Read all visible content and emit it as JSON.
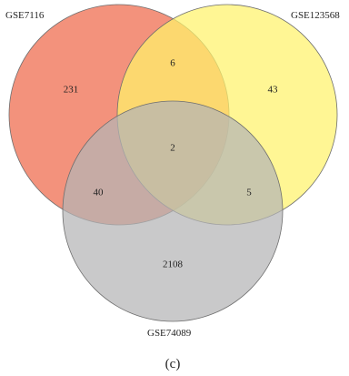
{
  "figure": {
    "caption": "(c)"
  },
  "sets": [
    {
      "key": "a",
      "label": "GSE7116",
      "color": "#f07a5f",
      "opacity": 0.82
    },
    {
      "key": "b",
      "label": "GSE123568",
      "color": "#fff36b",
      "opacity": 0.72
    },
    {
      "key": "c",
      "label": "GSE74089",
      "color": "#b4b4b6",
      "opacity": 0.72
    }
  ],
  "regions": {
    "a_only": "231",
    "b_only": "43",
    "c_only": "2108",
    "ab": "6",
    "ac": "40",
    "bc": "5",
    "abc": "2"
  }
}
